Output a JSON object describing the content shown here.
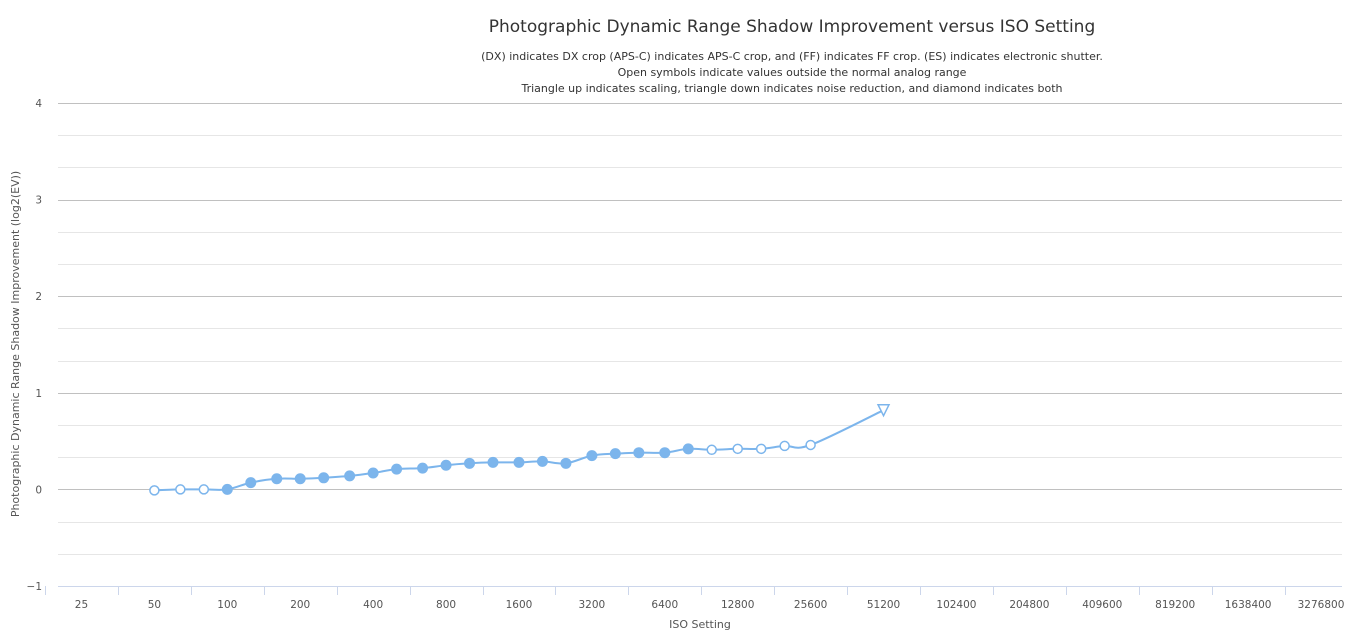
{
  "chart_data": {
    "type": "line",
    "title": "Photographic Dynamic Range Shadow Improvement versus ISO Setting",
    "subtitle_lines": [
      "(DX) indicates DX crop (APS-C) indicates APS-C crop, and (FF) indicates FF crop. (ES) indicates electronic shutter.",
      "Open symbols indicate values outside the normal analog range",
      "Triangle up indicates scaling, triangle down indicates noise reduction, and diamond indicates both"
    ],
    "xlabel": "ISO Setting",
    "ylabel": "Photographic Dynamic Range Shadow Improvement (log2(EV))",
    "x_scale": "log2",
    "x_ticks": [
      "25",
      "50",
      "100",
      "200",
      "400",
      "800",
      "1600",
      "3200",
      "6400",
      "12800",
      "25600",
      "51200",
      "102400",
      "204800",
      "409600",
      "819200",
      "1638400",
      "3276800"
    ],
    "x_range": [
      20,
      4000000
    ],
    "y_ticks": [
      "−1",
      "0",
      "1",
      "2",
      "3",
      "4"
    ],
    "ylim": [
      -1,
      4
    ],
    "grid": true,
    "line_color": "#7cb5ec",
    "series": [
      {
        "points": [
          {
            "x": 50,
            "y": -0.01,
            "marker": "open-circle"
          },
          {
            "x": 64,
            "y": 0.0,
            "marker": "open-circle"
          },
          {
            "x": 80,
            "y": 0.0,
            "marker": "open-circle"
          },
          {
            "x": 100,
            "y": 0.0,
            "marker": "circle"
          },
          {
            "x": 125,
            "y": 0.07,
            "marker": "circle"
          },
          {
            "x": 160,
            "y": 0.11,
            "marker": "circle"
          },
          {
            "x": 200,
            "y": 0.11,
            "marker": "circle"
          },
          {
            "x": 250,
            "y": 0.12,
            "marker": "circle"
          },
          {
            "x": 320,
            "y": 0.14,
            "marker": "circle"
          },
          {
            "x": 400,
            "y": 0.17,
            "marker": "circle"
          },
          {
            "x": 500,
            "y": 0.21,
            "marker": "circle"
          },
          {
            "x": 640,
            "y": 0.22,
            "marker": "circle"
          },
          {
            "x": 800,
            "y": 0.25,
            "marker": "circle"
          },
          {
            "x": 1000,
            "y": 0.27,
            "marker": "circle"
          },
          {
            "x": 1250,
            "y": 0.28,
            "marker": "circle"
          },
          {
            "x": 1600,
            "y": 0.28,
            "marker": "circle"
          },
          {
            "x": 2000,
            "y": 0.29,
            "marker": "circle"
          },
          {
            "x": 2500,
            "y": 0.27,
            "marker": "circle"
          },
          {
            "x": 3200,
            "y": 0.35,
            "marker": "circle"
          },
          {
            "x": 4000,
            "y": 0.37,
            "marker": "circle"
          },
          {
            "x": 5000,
            "y": 0.38,
            "marker": "circle"
          },
          {
            "x": 6400,
            "y": 0.38,
            "marker": "circle"
          },
          {
            "x": 8000,
            "y": 0.42,
            "marker": "circle"
          },
          {
            "x": 10000,
            "y": 0.41,
            "marker": "open-circle"
          },
          {
            "x": 12800,
            "y": 0.42,
            "marker": "open-circle"
          },
          {
            "x": 16000,
            "y": 0.42,
            "marker": "open-circle"
          },
          {
            "x": 20000,
            "y": 0.45,
            "marker": "open-circle"
          },
          {
            "x": 25600,
            "y": 0.46,
            "marker": "open-circle"
          },
          {
            "x": 51200,
            "y": 0.82,
            "marker": "open-triangle-down"
          }
        ]
      }
    ]
  }
}
